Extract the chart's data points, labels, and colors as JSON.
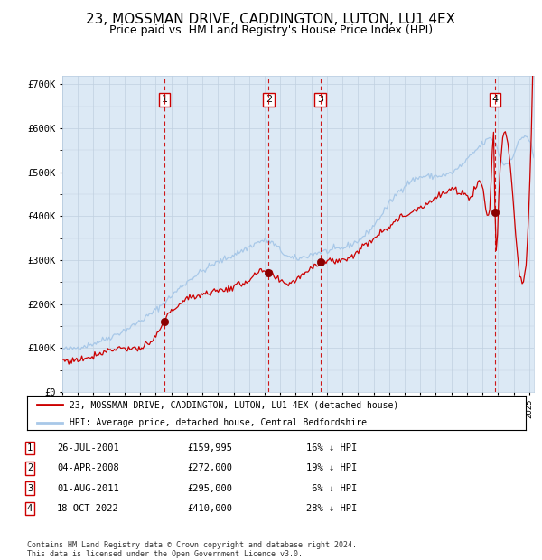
{
  "title": "23, MOSSMAN DRIVE, CADDINGTON, LUTON, LU1 4EX",
  "subtitle": "Price paid vs. HM Land Registry's House Price Index (HPI)",
  "title_fontsize": 11,
  "subtitle_fontsize": 9,
  "plot_bg_color": "#dce9f5",
  "ylabel": "",
  "ylim": [
    0,
    720000
  ],
  "yticks": [
    0,
    100000,
    200000,
    300000,
    400000,
    500000,
    600000,
    700000
  ],
  "ytick_labels": [
    "£0",
    "£100K",
    "£200K",
    "£300K",
    "£400K",
    "£500K",
    "£600K",
    "£700K"
  ],
  "hpi_color": "#a8c8e8",
  "price_color": "#cc0000",
  "marker_color": "#8b0000",
  "vline_color": "#cc0000",
  "grid_color": "#c0d0e0",
  "transactions": [
    {
      "num": 1,
      "year": 2001.56,
      "price": 159995
    },
    {
      "num": 2,
      "year": 2008.25,
      "price": 272000
    },
    {
      "num": 3,
      "year": 2011.58,
      "price": 295000
    },
    {
      "num": 4,
      "year": 2022.8,
      "price": 410000
    }
  ],
  "legend_price_label": "23, MOSSMAN DRIVE, CADDINGTON, LUTON, LU1 4EX (detached house)",
  "legend_hpi_label": "HPI: Average price, detached house, Central Bedfordshire",
  "footer": "Contains HM Land Registry data © Crown copyright and database right 2024.\nThis data is licensed under the Open Government Licence v3.0.",
  "xmin": 1995,
  "xmax": 2025.3,
  "table_rows": [
    [
      "1",
      "26-JUL-2001",
      "£159,995",
      "16% ↓ HPI"
    ],
    [
      "2",
      "04-APR-2008",
      "£272,000",
      "19% ↓ HPI"
    ],
    [
      "3",
      "01-AUG-2011",
      "£295,000",
      " 6% ↓ HPI"
    ],
    [
      "4",
      "18-OCT-2022",
      "£410,000",
      "28% ↓ HPI"
    ]
  ]
}
